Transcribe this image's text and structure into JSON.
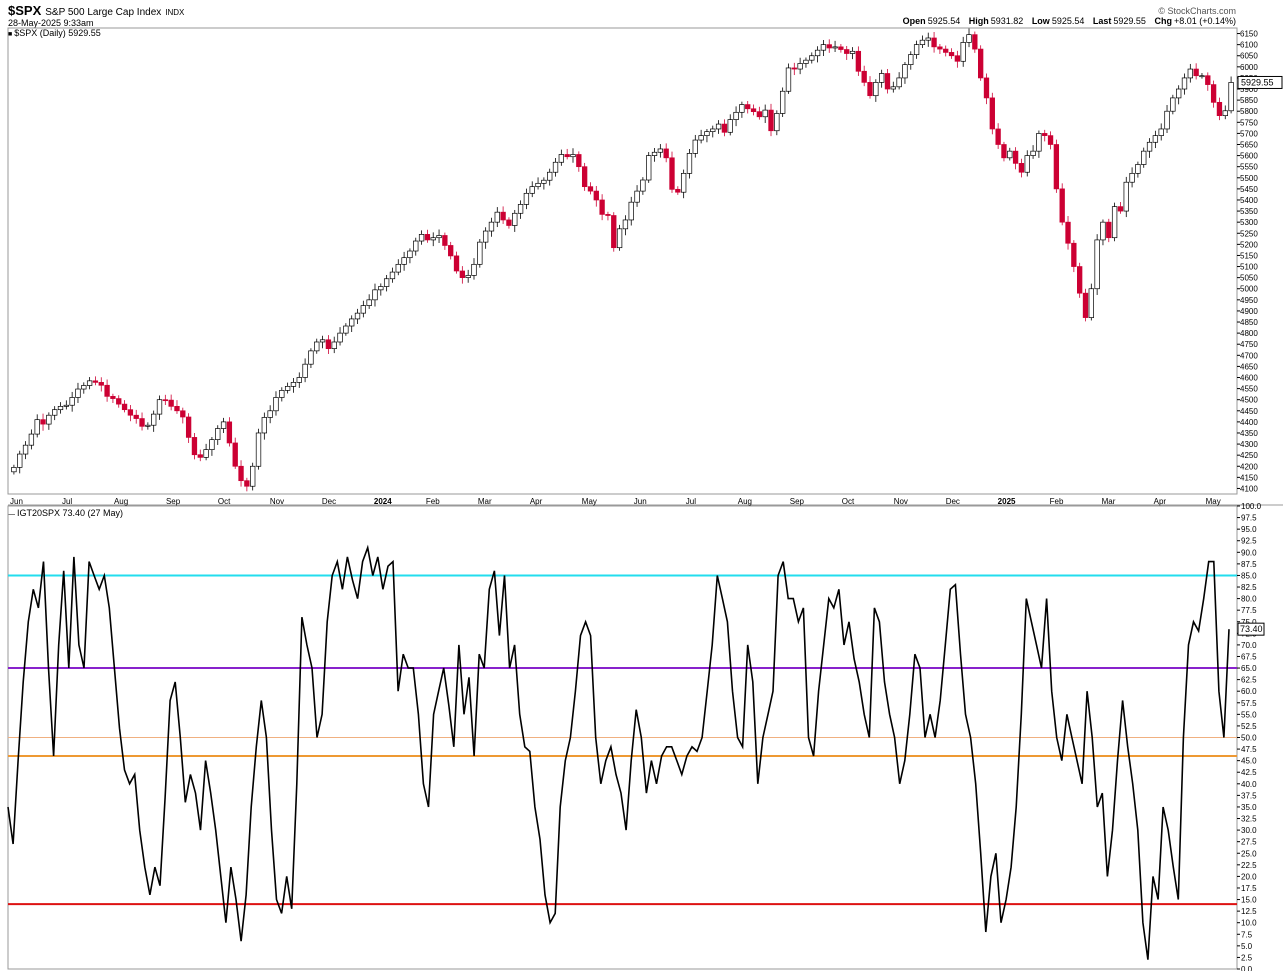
{
  "header": {
    "symbol": "$SPX",
    "description": "S&P 500 Large Cap Index",
    "exchange": "INDX",
    "timestamp": "28-May-2025 9:33am",
    "brand": "© StockCharts.com",
    "quote": {
      "open_label": "Open",
      "open": "5925.54",
      "high_label": "High",
      "high": "5931.82",
      "low_label": "Low",
      "low": "5925.54",
      "last_label": "Last",
      "last": "5929.55",
      "chg_label": "Chg",
      "chg": "+8.01 (+0.14%)"
    }
  },
  "colors": {
    "up": "#000000",
    "down": "#cc0033",
    "cyan": "#22ddee",
    "purple": "#8822cc",
    "orange_thin": "#f0b080",
    "orange": "#ee9933",
    "red": "#dd1111"
  },
  "chart_data": [
    {
      "type": "candlestick",
      "legend": "$SPX (Daily) 5929.55",
      "last_value": "5929.55",
      "x_labels": [
        "Jun",
        "Jul",
        "Aug",
        "Sep",
        "Oct",
        "Nov",
        "Dec",
        "2024",
        "Feb",
        "Mar",
        "Apr",
        "May",
        "Jun",
        "Jul",
        "Aug",
        "Sep",
        "Oct",
        "Nov",
        "Dec",
        "2025",
        "Feb",
        "Mar",
        "Apr",
        "May"
      ],
      "ylim": [
        4075,
        6175
      ],
      "y_ticks": [
        4100,
        4150,
        4200,
        4250,
        4300,
        4350,
        4400,
        4450,
        4500,
        4550,
        4600,
        4650,
        4700,
        4750,
        4800,
        4850,
        4900,
        4950,
        5000,
        5050,
        5100,
        5150,
        5200,
        5250,
        5300,
        5350,
        5400,
        5450,
        5500,
        5550,
        5600,
        5650,
        5700,
        5750,
        5800,
        5850,
        5900,
        5950,
        6000,
        6050,
        6100,
        6150
      ],
      "closes": [
        4195,
        4255,
        4295,
        4345,
        4410,
        4390,
        4430,
        4455,
        4470,
        4475,
        4510,
        4548,
        4564,
        4585,
        4578,
        4565,
        4515,
        4505,
        4480,
        4455,
        4430,
        4415,
        4380,
        4385,
        4435,
        4500,
        4498,
        4470,
        4450,
        4422,
        4330,
        4252,
        4240,
        4275,
        4320,
        4370,
        4400,
        4305,
        4200,
        4135,
        4110,
        4200,
        4350,
        4420,
        4450,
        4510,
        4542,
        4560,
        4578,
        4600,
        4660,
        4720,
        4760,
        4770,
        4730,
        4760,
        4800,
        4832,
        4864,
        4890,
        4924,
        4950,
        4995,
        5010,
        5045,
        5075,
        5110,
        5140,
        5170,
        5215,
        5245,
        5220,
        5230,
        5240,
        5195,
        5148,
        5080,
        5050,
        5060,
        5110,
        5210,
        5260,
        5300,
        5345,
        5310,
        5285,
        5340,
        5380,
        5430,
        5460,
        5475,
        5489,
        5525,
        5570,
        5605,
        5595,
        5605,
        5550,
        5460,
        5440,
        5400,
        5335,
        5330,
        5185,
        5270,
        5310,
        5390,
        5440,
        5490,
        5600,
        5615,
        5630,
        5590,
        5448,
        5435,
        5520,
        5610,
        5670,
        5690,
        5708,
        5720,
        5742,
        5705,
        5762,
        5795,
        5830,
        5811,
        5798,
        5775,
        5805,
        5712,
        5790,
        5890,
        5995,
        5990,
        6015,
        6030,
        6050,
        6075,
        6100,
        6085,
        6090,
        6078,
        6060,
        6070,
        5980,
        5930,
        5870,
        5930,
        5970,
        5900,
        5910,
        5950,
        6010,
        6055,
        6100,
        6120,
        6130,
        6090,
        6080,
        6065,
        6050,
        6025,
        6110,
        6145,
        6080,
        5950,
        5860,
        5720,
        5650,
        5590,
        5620,
        5565,
        5525,
        5600,
        5620,
        5700,
        5690,
        5650,
        5450,
        5300,
        5205,
        5100,
        4980,
        4870,
        5000,
        5220,
        5300,
        5230,
        5370,
        5350,
        5480,
        5520,
        5560,
        5620,
        5660,
        5690,
        5720,
        5800,
        5860,
        5900,
        5950,
        5990,
        5960,
        5960,
        5920,
        5840,
        5780,
        5802,
        5929.55
      ],
      "x_start_index": 0,
      "x_end_index": 199
    },
    {
      "type": "line",
      "legend": "IGT20SPX 73.40 (27 May)",
      "last_value": "73.40",
      "ylim": [
        0,
        100
      ],
      "y_ticks": [
        0,
        2.5,
        5,
        7.5,
        10,
        12.5,
        15,
        17.5,
        20,
        22.5,
        25,
        27.5,
        30,
        32.5,
        35,
        37.5,
        40,
        42.5,
        45,
        47.5,
        50,
        52.5,
        55,
        57.5,
        60,
        62.5,
        65,
        67.5,
        70,
        72.5,
        75,
        77.5,
        80,
        82.5,
        85,
        87.5,
        90,
        92.5,
        95,
        97.5,
        100
      ],
      "reference_lines": [
        {
          "value": 85,
          "color": "#22ddee"
        },
        {
          "value": 65,
          "color": "#8822cc"
        },
        {
          "value": 50,
          "color": "#f0b080"
        },
        {
          "value": 46,
          "color": "#ee9933"
        },
        {
          "value": 14,
          "color": "#dd1111"
        }
      ],
      "values": [
        35,
        27,
        45,
        62,
        75,
        82,
        78,
        88,
        65,
        46,
        70,
        86,
        65,
        89,
        70,
        65,
        88,
        85,
        82,
        85,
        78,
        65,
        52,
        43,
        40,
        42,
        30,
        22,
        16,
        22,
        18,
        37,
        58,
        62,
        50,
        36,
        42,
        38,
        30,
        45,
        38,
        30,
        20,
        10,
        22,
        15,
        6,
        16,
        35,
        48,
        58,
        50,
        30,
        15,
        12,
        20,
        13,
        40,
        76,
        70,
        65,
        50,
        55,
        75,
        85,
        88,
        82,
        89,
        84,
        80,
        88,
        91,
        85,
        89,
        82,
        87,
        88,
        60,
        68,
        65,
        65,
        55,
        40,
        35,
        55,
        60,
        65,
        57,
        48,
        70,
        55,
        63,
        46,
        68,
        65,
        82,
        86,
        72,
        85,
        65,
        70,
        55,
        48,
        47,
        35,
        28,
        16,
        10,
        12,
        35,
        45,
        50,
        60,
        72,
        75,
        72,
        50,
        40,
        45,
        48,
        42,
        38,
        30,
        45,
        56,
        50,
        38,
        45,
        40,
        46,
        48,
        48,
        45,
        42,
        46,
        48,
        47,
        50,
        60,
        70,
        85,
        80,
        75,
        60,
        50,
        48,
        70,
        62,
        40,
        50,
        55,
        60,
        85,
        88,
        80,
        80,
        75,
        78,
        50,
        46,
        60,
        70,
        80,
        78,
        82,
        70,
        75,
        67,
        62,
        55,
        50,
        78,
        75,
        62,
        55,
        50,
        40,
        45,
        55,
        68,
        65,
        50,
        55,
        50,
        58,
        70,
        82,
        83,
        68,
        55,
        50,
        40,
        25,
        8,
        20,
        25,
        10,
        15,
        22,
        35,
        55,
        80,
        75,
        70,
        65,
        80,
        60,
        50,
        45,
        55,
        50,
        45,
        40,
        60,
        50,
        35,
        38,
        20,
        30,
        45,
        58,
        48,
        40,
        30,
        10,
        2,
        20,
        15,
        35,
        30,
        22,
        15,
        50,
        70,
        75,
        73,
        80,
        88,
        88,
        60,
        50,
        73.4
      ],
      "x_start_index": 0,
      "x_end_index": 270
    }
  ]
}
